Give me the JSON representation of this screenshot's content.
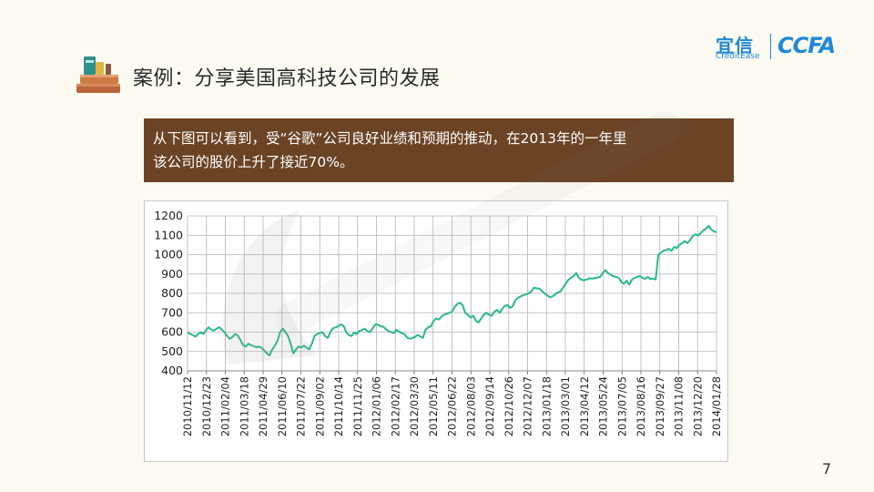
{
  "title": "案例：分享美国高科技公司的发展",
  "logo": {
    "name_cn": "宜信",
    "name_en": "CreditEase",
    "ccfa": "CCFA"
  },
  "callout_lines": [
    "从下图可以看到，受“谷歌”公司良好业绩和预期的推动，在2013年的一年里",
    "该公司的股价上升了接近70%。"
  ],
  "page_number": "7",
  "colors": {
    "line": "#2ab88a",
    "callout_bg": "#6b4325",
    "grid": "#b5b5b5",
    "accent": "#1e88d8"
  },
  "icons": {
    "header": "books-icon"
  },
  "chart_data": {
    "type": "line",
    "title": "",
    "xlabel": "",
    "ylabel": "",
    "ylim": [
      400,
      1200
    ],
    "yticks": [
      400,
      500,
      600,
      700,
      800,
      900,
      1000,
      1100,
      1200
    ],
    "grid": true,
    "legend": "none",
    "x_tick_labels": [
      "2010/11/12",
      "2010/12/23",
      "2011/02/04",
      "2011/03/18",
      "2011/04/29",
      "2011/06/10",
      "2011/07/22",
      "2011/09/02",
      "2011/10/14",
      "2011/11/25",
      "2012/01/06",
      "2012/02/17",
      "2012/03/30",
      "2012/05/11",
      "2012/06/22",
      "2012/08/03",
      "2012/09/14",
      "2012/10/26",
      "2012/12/07",
      "2013/01/18",
      "2013/03/01",
      "2013/04/12",
      "2013/05/24",
      "2013/07/05",
      "2013/08/16",
      "2013/09/27",
      "2013/11/08",
      "2013/12/20",
      "2014/01/28"
    ],
    "series": [
      {
        "values": [
          598,
          590,
          585,
          576,
          590,
          598,
          590,
          610,
          625,
          612,
          608,
          618,
          626,
          612,
          598,
          580,
          565,
          575,
          590,
          582,
          560,
          532,
          525,
          540,
          532,
          528,
          522,
          525,
          518,
          505,
          490,
          480,
          510,
          530,
          555,
          600,
          618,
          600,
          580,
          540,
          490,
          510,
          525,
          520,
          530,
          520,
          510,
          540,
          580,
          590,
          595,
          600,
          580,
          570,
          600,
          620,
          625,
          630,
          640,
          632,
          600,
          585,
          580,
          598,
          590,
          606,
          610,
          618,
          605,
          600,
          620,
          640,
          638,
          630,
          628,
          615,
          605,
          600,
          595,
          612,
          602,
          595,
          590,
          572,
          565,
          570,
          575,
          585,
          578,
          570,
          612,
          625,
          630,
          658,
          670,
          665,
          680,
          690,
          695,
          700,
          706,
          730,
          745,
          752,
          740,
          700,
          690,
          675,
          685,
          660,
          650,
          670,
          690,
          700,
          690,
          684,
          705,
          715,
          700,
          720,
          736,
          740,
          725,
          735,
          765,
          778,
          785,
          790,
          795,
          800,
          810,
          830,
          826,
          825,
          812,
          800,
          790,
          780,
          785,
          795,
          805,
          810,
          830,
          850,
          870,
          880,
          890,
          905,
          880,
          870,
          868,
          872,
          878,
          876,
          880,
          882,
          885,
          905,
          920,
          905,
          895,
          890,
          885,
          880,
          860,
          850,
          865,
          845,
          870,
          880,
          885,
          890,
          880,
          875,
          885,
          874,
          876,
          872,
          1000,
          1010,
          1020,
          1025,
          1030,
          1020,
          1040,
          1035,
          1050,
          1060,
          1070,
          1060,
          1075,
          1095,
          1105,
          1100,
          1110,
          1125,
          1135,
          1148,
          1130,
          1120,
          1116
        ]
      }
    ]
  }
}
